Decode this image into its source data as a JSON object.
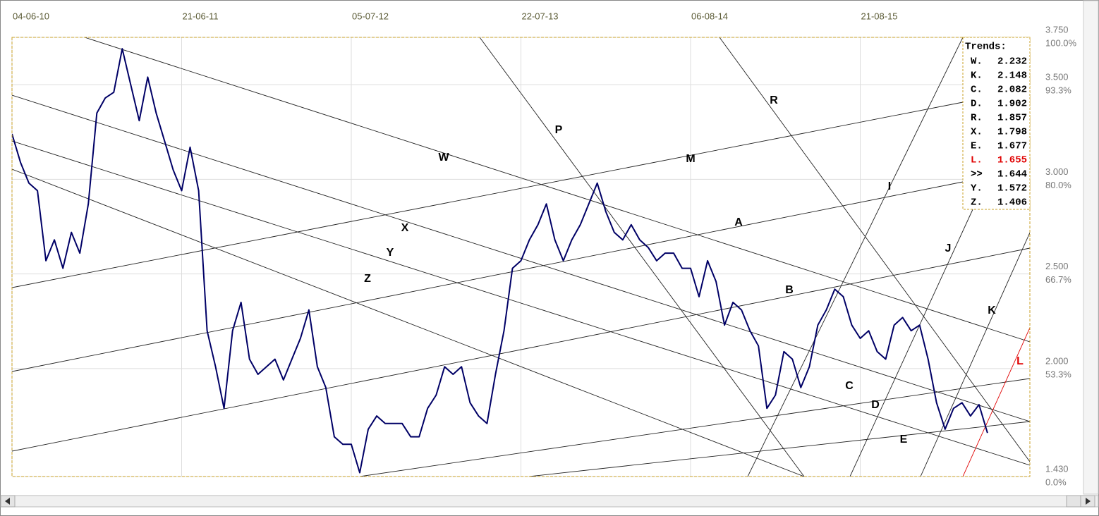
{
  "chart_data": {
    "type": "line",
    "categories": [
      "04-06-10",
      null,
      null,
      null,
      null,
      null,
      null,
      null,
      null,
      null,
      null,
      null,
      null,
      null,
      null,
      null,
      null,
      null,
      null,
      null,
      "21-06-11",
      null,
      null,
      null,
      null,
      null,
      null,
      null,
      null,
      null,
      null,
      null,
      null,
      null,
      null,
      null,
      null,
      null,
      null,
      null,
      "05-07-12",
      null,
      null,
      null,
      null,
      null,
      null,
      null,
      null,
      null,
      null,
      null,
      null,
      null,
      null,
      null,
      null,
      null,
      null,
      null,
      "22-07-13",
      null,
      null,
      null,
      null,
      null,
      null,
      null,
      null,
      null,
      null,
      null,
      null,
      null,
      null,
      null,
      null,
      null,
      null,
      null,
      "06-08-14",
      null,
      null,
      null,
      null,
      null,
      null,
      null,
      null,
      null,
      null,
      null,
      null,
      null,
      null,
      null,
      null,
      null,
      null,
      null,
      "21-08-15",
      null,
      null,
      null,
      null,
      null,
      null,
      null,
      null,
      null,
      null,
      null,
      null,
      null,
      null,
      null,
      null,
      null,
      null,
      null,
      null
    ],
    "values": [
      3.24,
      3.09,
      2.98,
      2.94,
      2.57,
      2.68,
      2.53,
      2.72,
      2.61,
      2.87,
      3.35,
      3.43,
      3.46,
      3.69,
      3.5,
      3.31,
      3.54,
      3.35,
      3.2,
      3.05,
      2.94,
      3.17,
      2.94,
      2.2,
      2.01,
      1.79,
      2.2,
      2.35,
      2.05,
      1.97,
      2.01,
      2.05,
      1.94,
      2.05,
      2.16,
      2.31,
      2.01,
      1.9,
      1.64,
      1.6,
      1.6,
      1.45,
      1.68,
      1.75,
      1.71,
      1.71,
      1.71,
      1.64,
      1.64,
      1.79,
      1.86,
      2.01,
      1.97,
      2.01,
      1.82,
      1.75,
      1.71,
      1.97,
      2.2,
      2.53,
      2.57,
      2.68,
      2.76,
      2.87,
      2.68,
      2.57,
      2.68,
      2.76,
      2.87,
      2.98,
      2.83,
      2.72,
      2.68,
      2.76,
      2.68,
      2.64,
      2.57,
      2.61,
      2.61,
      2.53,
      2.53,
      2.38,
      2.57,
      2.46,
      2.23,
      2.35,
      2.31,
      2.2,
      2.12,
      1.79,
      1.86,
      2.09,
      2.05,
      1.9,
      2.01,
      2.23,
      2.31,
      2.42,
      2.38,
      2.23,
      2.16,
      2.2,
      2.09,
      2.05,
      2.23,
      2.27,
      2.2,
      2.23,
      2.05,
      1.82,
      1.68,
      1.79,
      1.82,
      1.75,
      1.81,
      1.66,
      null,
      null,
      null,
      null,
      null
    ],
    "color": "#000066",
    "ylim": [
      1.43,
      3.75
    ],
    "yticks": [
      {
        "value": 3.75,
        "label": "3.750",
        "pct": "100.0%"
      },
      {
        "value": 3.5,
        "label": "3.500",
        "pct": "93.3%"
      },
      {
        "value": 3.0,
        "label": "3.000",
        "pct": "80.0%"
      },
      {
        "value": 2.5,
        "label": "2.500",
        "pct": "66.7%"
      },
      {
        "value": 2.0,
        "label": "2.000",
        "pct": "53.3%"
      },
      {
        "value": 1.43,
        "label": "1.430",
        "pct": "0.0%"
      }
    ],
    "grid": true,
    "line_labels": [
      {
        "text": "P"
      },
      {
        "text": "R"
      },
      {
        "text": "W"
      },
      {
        "text": "M"
      },
      {
        "text": "I"
      },
      {
        "text": "X"
      },
      {
        "text": "A"
      },
      {
        "text": "J"
      },
      {
        "text": "Y"
      },
      {
        "text": "Z"
      },
      {
        "text": "B"
      },
      {
        "text": "K"
      },
      {
        "text": "C"
      },
      {
        "text": "L",
        "color": "#e00000"
      },
      {
        "text": "D"
      },
      {
        "text": "E"
      }
    ],
    "trends_title": "Trends:",
    "trends": [
      {
        "name": "W.",
        "value": 2.232
      },
      {
        "name": "K.",
        "value": 2.148
      },
      {
        "name": "C.",
        "value": 2.082
      },
      {
        "name": "D.",
        "value": 1.902
      },
      {
        "name": "R.",
        "value": 1.857
      },
      {
        "name": "X.",
        "value": 1.798
      },
      {
        "name": "E.",
        "value": 1.677
      },
      {
        "name": "L.",
        "value": 1.655,
        "color": "#e00000"
      },
      {
        "name": ">>",
        "value": 1.644
      },
      {
        "name": "Y.",
        "value": 1.572
      },
      {
        "name": "Z.",
        "value": 1.406
      }
    ]
  }
}
